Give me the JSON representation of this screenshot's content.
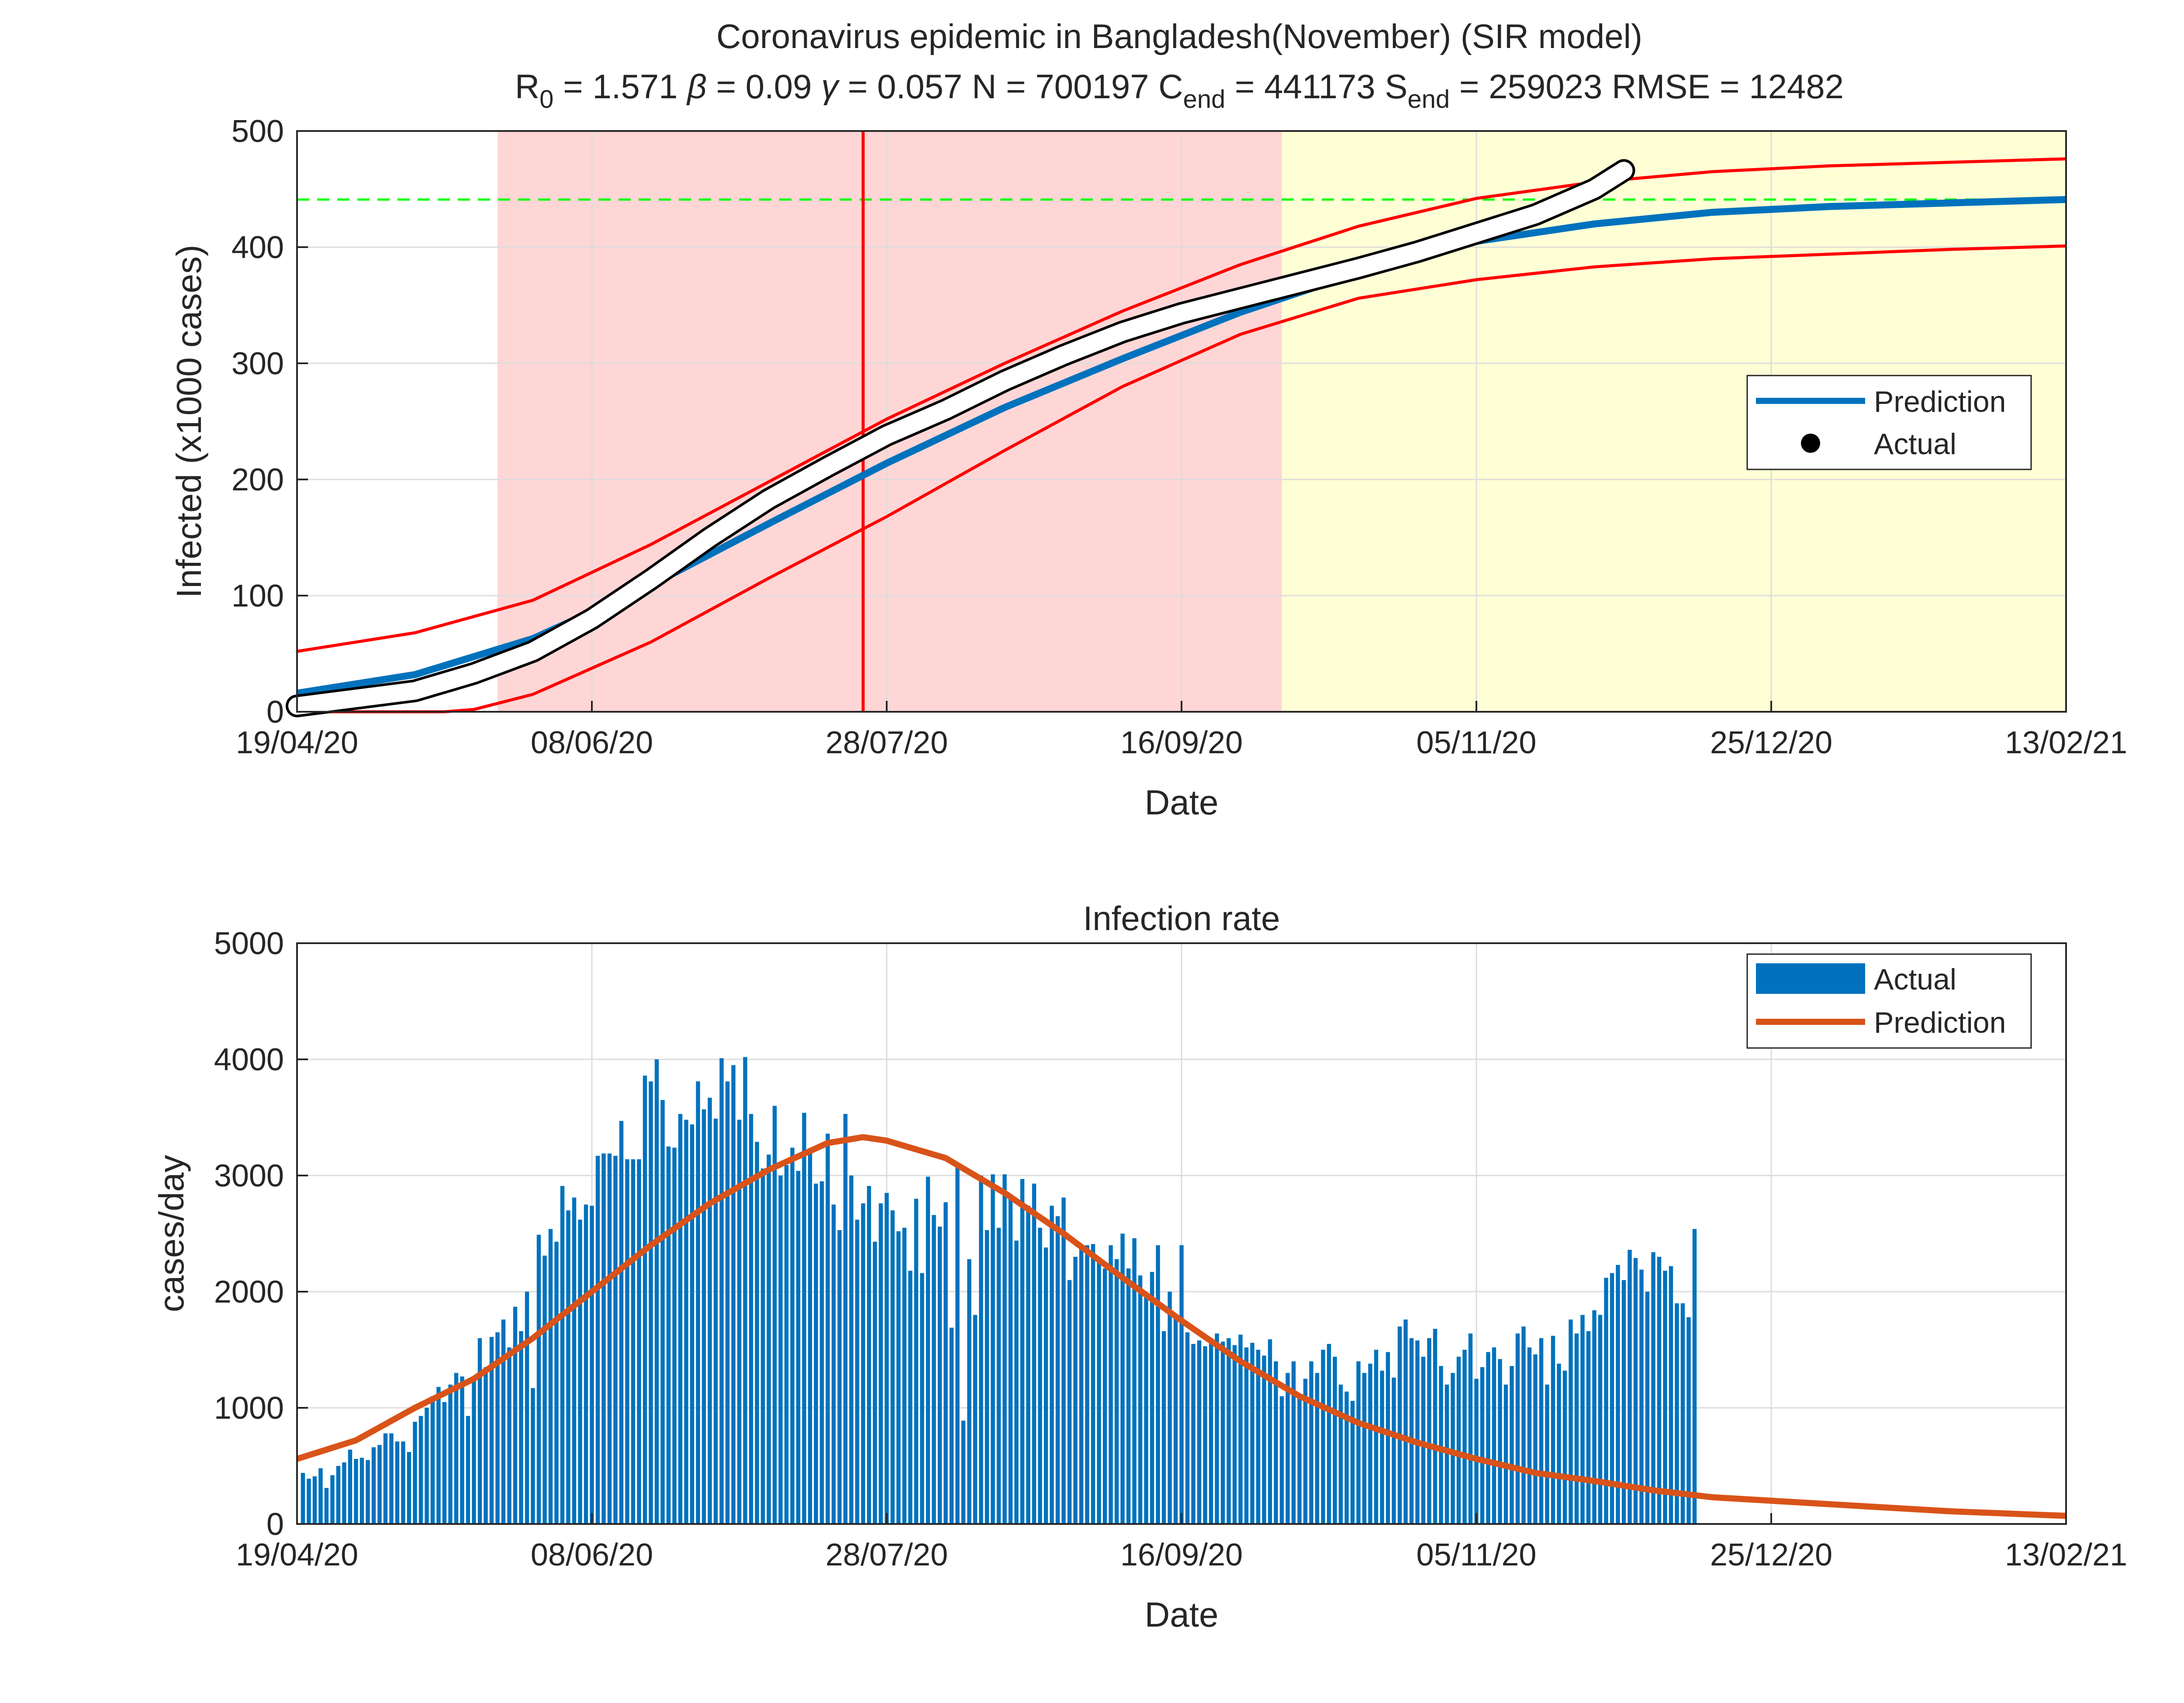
{
  "colors": {
    "pred_blue": "#0072BD",
    "pred_orange": "#D95319",
    "band_red": "#FF0000",
    "asymptote_green": "#00FF00",
    "bar_blue": "#0072BD",
    "shade_pink": "#FFD6D6",
    "shade_yellow": "#FFFFD6",
    "actual_black": "#000000"
  },
  "chart_data": [
    {
      "type": "line",
      "title": "Coronavirus epidemic in Bangladesh(November) (SIR model)",
      "subtitle": {
        "r0": "1.571",
        "beta": "0.09",
        "gamma": "0.057",
        "N": "700197",
        "Cend": "441173",
        "Send": "259023",
        "RMSE": "12482"
      },
      "xlabel": "Date",
      "ylabel": "Infected (x1000 cases)",
      "xticks": [
        "19/04/20",
        "08/06/20",
        "28/07/20",
        "16/09/20",
        "05/11/20",
        "25/12/20",
        "13/02/21"
      ],
      "xticks_day": [
        0,
        50,
        100,
        150,
        200,
        250,
        300
      ],
      "xlim_day": [
        0,
        300
      ],
      "yticks": [
        "0",
        "100",
        "200",
        "300",
        "400",
        "500"
      ],
      "ylim": [
        0,
        500
      ],
      "grid": true,
      "legend_position": "right",
      "legend": [
        "Prediction",
        "Actual"
      ],
      "shaded_regions": [
        {
          "from_day": 34,
          "to_day": 167,
          "color": "pink"
        },
        {
          "from_day": 167,
          "to_day": 300,
          "color": "yellow"
        }
      ],
      "vertical_line_day": 96,
      "asymptote": 441,
      "prediction": {
        "name": "Prediction",
        "x_day": [
          0,
          20,
          40,
          60,
          80,
          100,
          120,
          140,
          160,
          180,
          200,
          220,
          240,
          260,
          280,
          300
        ],
        "y": [
          16,
          32,
          63,
          109,
          162,
          214,
          262,
          304,
          344,
          378,
          405,
          420,
          430,
          435,
          438,
          441
        ]
      },
      "band_upper": {
        "x_day": [
          0,
          20,
          40,
          60,
          80,
          100,
          120,
          140,
          160,
          180,
          200,
          220,
          240,
          260,
          280,
          300
        ],
        "y": [
          52,
          68,
          96,
          144,
          198,
          252,
          300,
          345,
          385,
          418,
          442,
          456,
          465,
          470,
          473,
          476
        ]
      },
      "band_lower": {
        "x_day": [
          0,
          20,
          25,
          30,
          40,
          60,
          80,
          100,
          120,
          140,
          160,
          180,
          200,
          220,
          240,
          260,
          280,
          300
        ],
        "y": [
          0,
          0,
          0,
          2,
          15,
          60,
          115,
          168,
          225,
          280,
          325,
          356,
          372,
          383,
          390,
          394,
          398,
          401
        ]
      },
      "actual": {
        "name": "Actual",
        "x_day": [
          0,
          20,
          30,
          40,
          50,
          60,
          70,
          80,
          90,
          100,
          105,
          110,
          120,
          130,
          140,
          150,
          160,
          170,
          180,
          190,
          200,
          210,
          220,
          225
        ],
        "y": [
          5,
          18,
          33,
          52,
          80,
          114,
          150,
          183,
          211,
          238,
          249,
          260,
          285,
          307,
          327,
          343,
          356,
          369,
          382,
          396,
          412,
          428,
          450,
          466
        ]
      }
    },
    {
      "type": "bar",
      "title": "Infection rate",
      "xlabel": "Date",
      "ylabel": "cases/day",
      "xticks": [
        "19/04/20",
        "08/06/20",
        "28/07/20",
        "16/09/20",
        "05/11/20",
        "25/12/20",
        "13/02/21"
      ],
      "xticks_day": [
        0,
        50,
        100,
        150,
        200,
        250,
        300
      ],
      "xlim_day": [
        0,
        300
      ],
      "yticks": [
        "0",
        "1000",
        "2000",
        "3000",
        "4000",
        "5000"
      ],
      "ylim": [
        0,
        5000
      ],
      "grid": true,
      "legend_position": "top-right",
      "legend": [
        "Actual",
        "Prediction"
      ],
      "actual_start_day": 1,
      "actual": [
        440,
        390,
        410,
        480,
        310,
        420,
        500,
        530,
        640,
        560,
        570,
        550,
        660,
        680,
        780,
        780,
        710,
        710,
        620,
        880,
        930,
        1000,
        1100,
        1180,
        1050,
        1200,
        1300,
        1270,
        930,
        1260,
        1600,
        1350,
        1610,
        1650,
        1760,
        1520,
        1870,
        1660,
        2000,
        1170,
        2490,
        2310,
        2540,
        2430,
        2910,
        2700,
        2810,
        2620,
        2750,
        2740,
        3170,
        3190,
        3190,
        3170,
        3470,
        3140,
        3140,
        3140,
        3860,
        3810,
        4000,
        3650,
        3250,
        3240,
        3530,
        3480,
        3440,
        3810,
        3570,
        3670,
        3490,
        4010,
        3810,
        3950,
        3480,
        4020,
        3530,
        3290,
        3060,
        3180,
        3600,
        3000,
        3090,
        3240,
        3040,
        3540,
        3200,
        2930,
        2950,
        3360,
        2750,
        2530,
        3530,
        3000,
        2620,
        2760,
        2910,
        2430,
        2760,
        2850,
        2700,
        2520,
        2550,
        2180,
        2800,
        2160,
        2990,
        2660,
        2560,
        2770,
        1690,
        3100,
        890,
        2280,
        1800,
        3000,
        2530,
        3010,
        2550,
        3010,
        2820,
        2440,
        2970,
        2740,
        2930,
        2550,
        2380,
        2740,
        2650,
        2810,
        2100,
        2300,
        2400,
        2400,
        2410,
        2270,
        2200,
        2400,
        2280,
        2500,
        2200,
        2460,
        2140,
        1970,
        2170,
        2400,
        1660,
        2000,
        1790,
        2400,
        1650,
        1550,
        1580,
        1530,
        1600,
        1640,
        1570,
        1600,
        1540,
        1630,
        1520,
        1560,
        1500,
        1450,
        1590,
        1400,
        1100,
        1300,
        1400,
        1100,
        1250,
        1400,
        1300,
        1500,
        1550,
        1440,
        1200,
        1140,
        1060,
        1400,
        1300,
        1380,
        1500,
        1320,
        1480,
        1260,
        1700,
        1760,
        1600,
        1580,
        1440,
        1600,
        1680,
        1360,
        1200,
        1300,
        1440,
        1500,
        1640,
        1250,
        1350,
        1480,
        1520,
        1420,
        1200,
        1360,
        1640,
        1700,
        1520,
        1460,
        1600,
        1200,
        1620,
        1380,
        1320,
        1760,
        1640,
        1800,
        1660,
        1840,
        1800,
        2120,
        2160,
        2230,
        2100,
        2360,
        2290,
        2190,
        2000,
        2340,
        2300,
        2180,
        2220,
        1900,
        1900,
        1780,
        2540
      ],
      "prediction": {
        "name": "Prediction",
        "x_day": [
          0,
          10,
          20,
          30,
          40,
          50,
          60,
          70,
          80,
          90,
          96,
          100,
          110,
          120,
          130,
          140,
          150,
          160,
          170,
          180,
          190,
          200,
          210,
          220,
          230,
          240,
          250,
          260,
          270,
          280,
          290,
          300
        ],
        "y": [
          560,
          720,
          1000,
          1250,
          1600,
          2000,
          2400,
          2760,
          3050,
          3280,
          3330,
          3300,
          3150,
          2850,
          2500,
          2120,
          1750,
          1400,
          1100,
          870,
          700,
          560,
          440,
          370,
          290,
          230,
          200,
          170,
          140,
          110,
          90,
          70
        ]
      }
    }
  ]
}
